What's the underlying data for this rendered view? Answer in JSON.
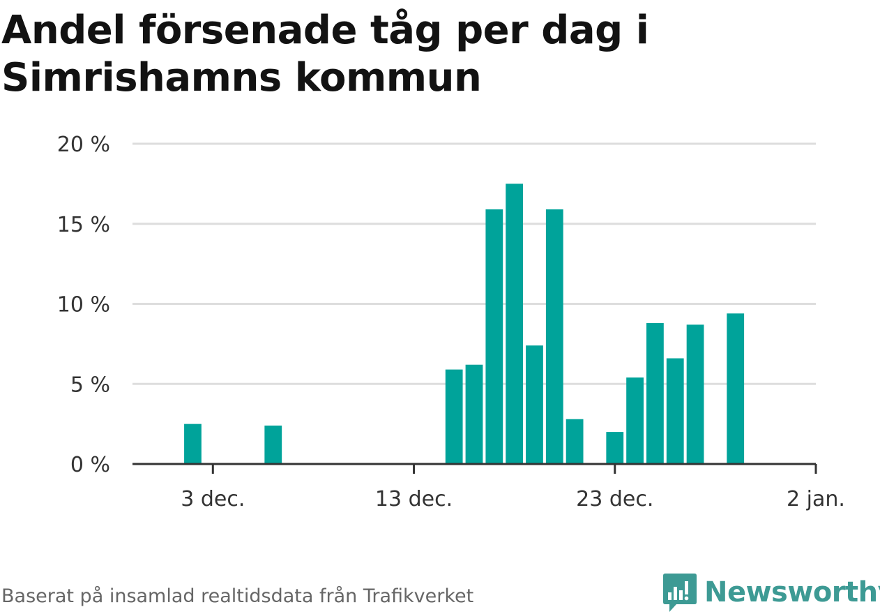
{
  "title": "Andel försenade tåg per dag i Simrishamns kommun",
  "source": "Baserat på insamlad realtidsdata från Trafikverket",
  "logo_text": "Newsworthy",
  "colors": {
    "bar": "#00a39a",
    "grid": "#dddddd",
    "axis": "#333333",
    "logo": "#3d9a94"
  },
  "chart_data": {
    "type": "bar",
    "title": "Andel försenade tåg per dag i Simrishamns kommun",
    "xlabel": "",
    "ylabel": "",
    "ylim": [
      0,
      20
    ],
    "grid": true,
    "y_ticks": [
      {
        "value": 0,
        "label": "0 %"
      },
      {
        "value": 5,
        "label": "5 %"
      },
      {
        "value": 10,
        "label": "10 %"
      },
      {
        "value": 15,
        "label": "15 %"
      },
      {
        "value": 20,
        "label": "20 %"
      }
    ],
    "x_range": [
      "2023-11-29",
      "2024-01-02"
    ],
    "x_ticks": [
      {
        "date": "2023-12-03",
        "label": "3 dec."
      },
      {
        "date": "2023-12-13",
        "label": "13 dec."
      },
      {
        "date": "2023-12-23",
        "label": "23 dec."
      },
      {
        "date": "2024-01-02",
        "label": "2 jan."
      }
    ],
    "points": [
      {
        "date": "2023-12-02",
        "value": 2.5
      },
      {
        "date": "2023-12-06",
        "value": 2.4
      },
      {
        "date": "2023-12-15",
        "value": 5.9
      },
      {
        "date": "2023-12-16",
        "value": 6.2
      },
      {
        "date": "2023-12-17",
        "value": 15.9
      },
      {
        "date": "2023-12-18",
        "value": 17.5
      },
      {
        "date": "2023-12-19",
        "value": 7.4
      },
      {
        "date": "2023-12-20",
        "value": 15.9
      },
      {
        "date": "2023-12-21",
        "value": 2.8
      },
      {
        "date": "2023-12-23",
        "value": 2.0
      },
      {
        "date": "2023-12-24",
        "value": 5.4
      },
      {
        "date": "2023-12-25",
        "value": 8.8
      },
      {
        "date": "2023-12-26",
        "value": 6.6
      },
      {
        "date": "2023-12-27",
        "value": 8.7
      },
      {
        "date": "2023-12-29",
        "value": 9.4
      }
    ]
  }
}
